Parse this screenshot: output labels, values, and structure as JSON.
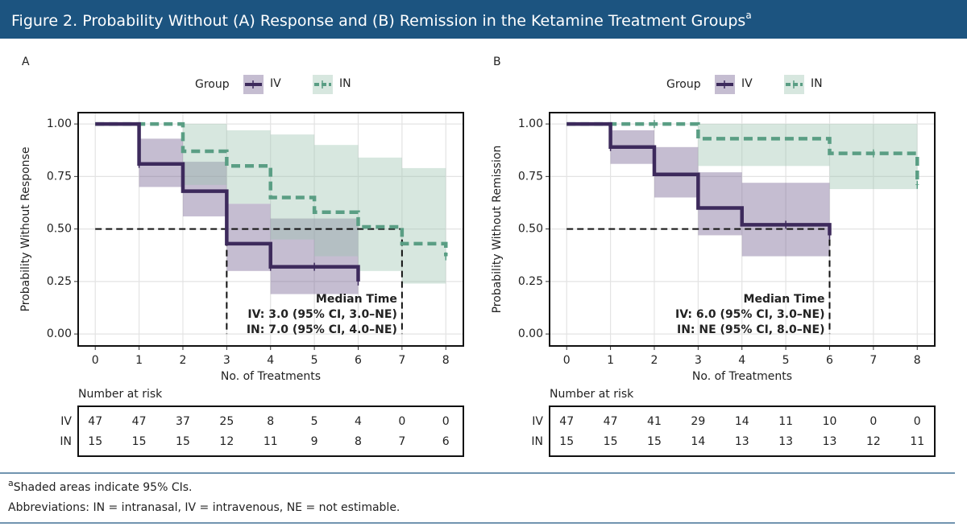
{
  "header": {
    "title": "Figure 2. Probability Without (A) Response and (B) Remission in the Ketamine Treatment Groups",
    "title_superscript": "a"
  },
  "chart_data": [
    {
      "type": "km",
      "panel": "A",
      "legend_title": "Group",
      "xlabel": "No. of Treatments",
      "ylabel": "Probability Without Response",
      "xlim": [
        -0.39,
        8.4
      ],
      "ylim": [
        -0.057,
        1.054
      ],
      "xticks": [
        0,
        1,
        2,
        3,
        4,
        5,
        6,
        7,
        8
      ],
      "yticks": [
        {
          "value": 0,
          "label": "0.00"
        },
        {
          "value": 0.25,
          "label": "0.25"
        },
        {
          "value": 0.5,
          "label": "0.50"
        },
        {
          "value": 0.75,
          "label": "0.75"
        },
        {
          "value": 1,
          "label": "1.00"
        }
      ],
      "grid": true,
      "series": [
        {
          "name": "IV",
          "color": "#3d2a5c",
          "band_color": "#6e5a8c",
          "dashed": false,
          "x": [
            0,
            1,
            2,
            3,
            4,
            5,
            6
          ],
          "y": [
            1,
            0.81,
            0.68,
            0.43,
            0.32,
            0.32,
            0.25
          ],
          "lower": [
            1,
            0.7,
            0.56,
            0.3,
            0.19,
            0.19,
            0.19
          ],
          "upper": [
            1,
            0.93,
            0.82,
            0.62,
            0.55,
            0.55,
            0.55
          ],
          "censor_x": [
            1,
            4,
            5,
            6
          ],
          "censor_y": [
            0.81,
            0.32,
            0.32,
            0.25
          ]
        },
        {
          "name": "IN",
          "color": "#5a9e84",
          "band_color": "#9cc4b0",
          "dashed": true,
          "x": [
            0,
            2,
            3,
            4,
            5,
            6,
            7,
            8
          ],
          "y": [
            1,
            0.87,
            0.8,
            0.65,
            0.58,
            0.51,
            0.43,
            0.37
          ],
          "lower": [
            1,
            0.71,
            0.62,
            0.45,
            0.37,
            0.3,
            0.24,
            0.24
          ],
          "upper": [
            1,
            1,
            0.97,
            0.95,
            0.9,
            0.84,
            0.79,
            0.79
          ],
          "censor_x": [
            8
          ],
          "censor_y": [
            0.37
          ]
        }
      ],
      "median": {
        "y": 0.5,
        "x": [
          3,
          7
        ]
      },
      "annotations": [
        "Median Time",
        "IV: 3.0 (95% CI, 3.0–NE)",
        "IN: 7.0 (95% CI, 4.0–NE)"
      ],
      "risk_table": {
        "title": "Number at risk",
        "rows": [
          {
            "name": "IV",
            "values": [
              47,
              47,
              37,
              25,
              8,
              5,
              4,
              0,
              0
            ]
          },
          {
            "name": "IN",
            "values": [
              15,
              15,
              15,
              12,
              11,
              9,
              8,
              7,
              6
            ]
          }
        ]
      }
    },
    {
      "type": "km",
      "panel": "B",
      "legend_title": "Group",
      "xlabel": "No. of Treatments",
      "ylabel": "Probability Without Remission",
      "xlim": [
        -0.39,
        8.4
      ],
      "ylim": [
        -0.057,
        1.054
      ],
      "xticks": [
        0,
        1,
        2,
        3,
        4,
        5,
        6,
        7,
        8
      ],
      "yticks": [
        {
          "value": 0,
          "label": "0.00"
        },
        {
          "value": 0.25,
          "label": "0.25"
        },
        {
          "value": 0.5,
          "label": "0.50"
        },
        {
          "value": 0.75,
          "label": "0.75"
        },
        {
          "value": 1,
          "label": "1.00"
        }
      ],
      "grid": true,
      "series": [
        {
          "name": "IV",
          "color": "#3d2a5c",
          "band_color": "#6e5a8c",
          "dashed": false,
          "x": [
            0,
            1,
            2,
            3,
            4,
            5,
            6
          ],
          "y": [
            1,
            0.89,
            0.76,
            0.6,
            0.52,
            0.52,
            0.47
          ],
          "lower": [
            1,
            0.81,
            0.65,
            0.47,
            0.37,
            0.37,
            0.37
          ],
          "upper": [
            1,
            0.97,
            0.89,
            0.77,
            0.72,
            0.72,
            0.72
          ],
          "censor_x": [
            1,
            5,
            6
          ],
          "censor_y": [
            0.89,
            0.52,
            0.47
          ]
        },
        {
          "name": "IN",
          "color": "#5a9e84",
          "band_color": "#9cc4b0",
          "dashed": true,
          "x": [
            0,
            3,
            6,
            8
          ],
          "y": [
            1,
            0.93,
            0.86,
            0.71
          ],
          "lower": [
            1,
            0.8,
            0.69,
            0.69
          ],
          "upper": [
            1,
            1,
            1,
            1
          ],
          "censor_x": [
            2,
            7,
            8
          ],
          "censor_y": [
            1,
            0.86,
            0.71
          ]
        }
      ],
      "median": {
        "y": 0.5,
        "x": [
          6
        ]
      },
      "annotations": [
        "Median Time",
        "IV: 6.0 (95% CI, 3.0–NE)",
        "IN: NE (95% CI, 8.0–NE)"
      ],
      "risk_table": {
        "title": "Number at risk",
        "rows": [
          {
            "name": "IV",
            "values": [
              47,
              47,
              41,
              29,
              14,
              11,
              10,
              0,
              0
            ]
          },
          {
            "name": "IN",
            "values": [
              15,
              15,
              15,
              14,
              13,
              13,
              13,
              12,
              11
            ]
          }
        ]
      }
    }
  ],
  "footnotes": {
    "superscript": "a",
    "note": "Shaded areas indicate 95% CIs.",
    "abbreviations": "Abbreviations: IN = intranasal, IV = intravenous, NE = not estimable."
  }
}
